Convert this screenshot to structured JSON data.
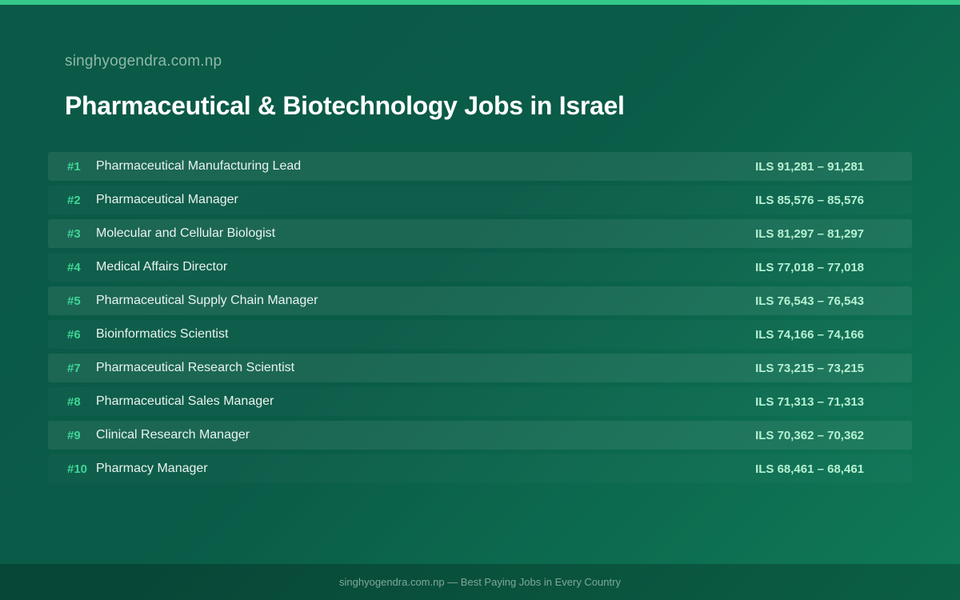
{
  "header": {
    "site_name": "singhyogendra.com.np",
    "title": "Pharmaceutical & Biotechnology Jobs in Israel"
  },
  "jobs": [
    {
      "rank": "#1",
      "title": "Pharmaceutical Manufacturing Lead",
      "salary": "ILS 91,281 – 91,281"
    },
    {
      "rank": "#2",
      "title": "Pharmaceutical Manager",
      "salary": "ILS 85,576 – 85,576"
    },
    {
      "rank": "#3",
      "title": "Molecular and Cellular Biologist",
      "salary": "ILS 81,297 – 81,297"
    },
    {
      "rank": "#4",
      "title": "Medical Affairs Director",
      "salary": "ILS 77,018 – 77,018"
    },
    {
      "rank": "#5",
      "title": "Pharmaceutical Supply Chain Manager",
      "salary": "ILS 76,543 – 76,543"
    },
    {
      "rank": "#6",
      "title": "Bioinformatics Scientist",
      "salary": "ILS 74,166 – 74,166"
    },
    {
      "rank": "#7",
      "title": "Pharmaceutical Research Scientist",
      "salary": "ILS 73,215 – 73,215"
    },
    {
      "rank": "#8",
      "title": "Pharmaceutical Sales Manager",
      "salary": "ILS 71,313 – 71,313"
    },
    {
      "rank": "#9",
      "title": "Clinical Research Manager",
      "salary": "ILS 70,362 – 70,362"
    },
    {
      "rank": "#10",
      "title": "Pharmacy Manager",
      "salary": "ILS 68,461 – 68,461"
    }
  ],
  "footer": {
    "text": "singhyogendra.com.np — Best Paying Jobs in Every Country"
  },
  "colors": {
    "accent": "#34c98a",
    "rank": "#3fd595",
    "salary": "#b6f0d2",
    "background": "#0b5a48"
  }
}
